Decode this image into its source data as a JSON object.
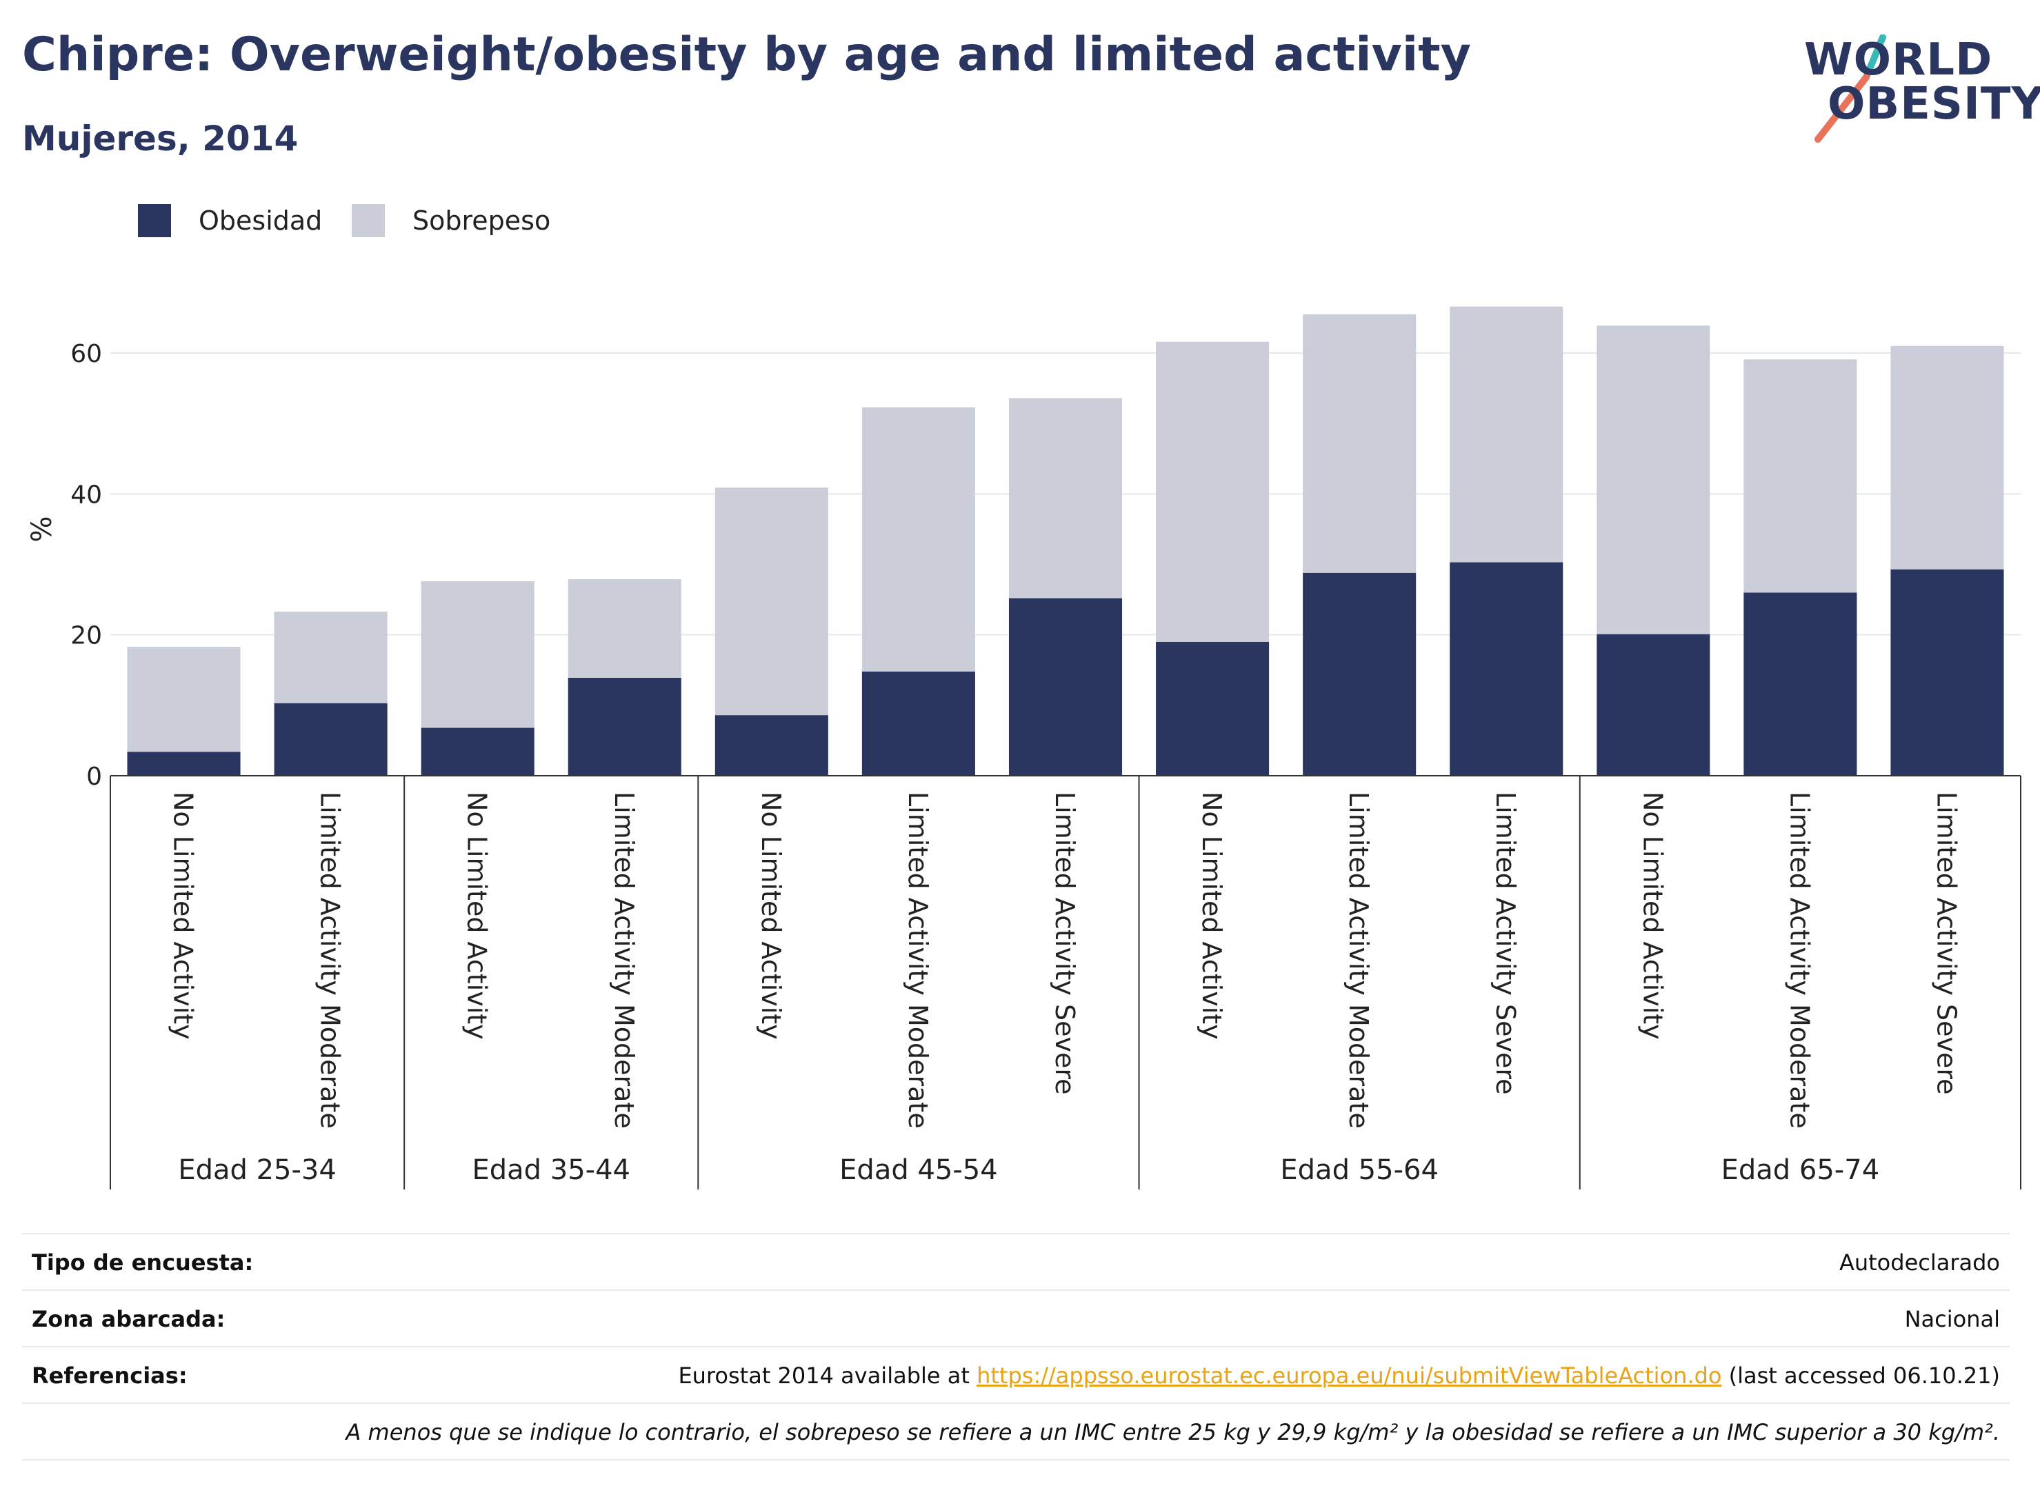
{
  "header": {
    "title": "Chipre: Overweight/obesity by age and limited activity",
    "subtitle": "Mujeres, 2014"
  },
  "logo": {
    "line1": "WORLD",
    "line2": "OBESITY",
    "colors": {
      "text": "#2a3560",
      "slash_top": "#3ab8b5",
      "slash_bottom": "#e8735a"
    }
  },
  "legend": [
    {
      "label": "Obesidad",
      "color": "#2a3560"
    },
    {
      "label": "Sobrepeso",
      "color": "#cbcdd8"
    }
  ],
  "chart_data": {
    "type": "bar",
    "stacked": true,
    "ylabel": "%",
    "ylim": [
      0,
      70
    ],
    "yticks": [
      0,
      20,
      40,
      60
    ],
    "grid": true,
    "legend_position": "top-left",
    "groups": [
      {
        "label": "Edad 25-34",
        "categories": [
          "No Limited Activity",
          "Limited Activity Moderate"
        ]
      },
      {
        "label": "Edad 35-44",
        "categories": [
          "No Limited Activity",
          "Limited Activity Moderate"
        ]
      },
      {
        "label": "Edad 45-54",
        "categories": [
          "No Limited Activity",
          "Limited Activity Moderate",
          "Limited Activity Severe"
        ]
      },
      {
        "label": "Edad 55-64",
        "categories": [
          "No Limited Activity",
          "Limited Activity Moderate",
          "Limited Activity Severe"
        ]
      },
      {
        "label": "Edad 65-74",
        "categories": [
          "No Limited Activity",
          "Limited Activity Moderate",
          "Limited Activity Severe"
        ]
      }
    ],
    "series": [
      {
        "name": "Obesidad",
        "color": "#2a3560",
        "values": [
          3.4,
          10.3,
          6.8,
          13.9,
          8.6,
          14.8,
          25.2,
          19.0,
          28.8,
          30.3,
          20.1,
          26.0,
          29.3
        ]
      },
      {
        "name": "Sobrepeso",
        "color": "#cbcdd8",
        "values": [
          14.9,
          13.0,
          20.8,
          14.0,
          32.3,
          37.5,
          28.4,
          42.6,
          36.7,
          36.3,
          43.8,
          33.1,
          31.7
        ]
      }
    ]
  },
  "meta": {
    "survey_label": "Tipo de encuesta:",
    "survey_value": "Autodeclarado",
    "area_label": "Zona abarcada:",
    "area_value": "Nacional",
    "refs_label": "Referencias:",
    "refs_prefix": "Eurostat 2014 available at ",
    "refs_link": "https://appsso.eurostat.ec.europa.eu/nui/submitViewTableAction.do",
    "refs_suffix": " (last accessed 06.10.21)",
    "note": "A menos que se indique lo contrario, el sobrepeso se refiere a un IMC entre 25 kg y 29,9 kg/m² y la obesidad se refiere a un IMC superior a 30 kg/m²."
  }
}
